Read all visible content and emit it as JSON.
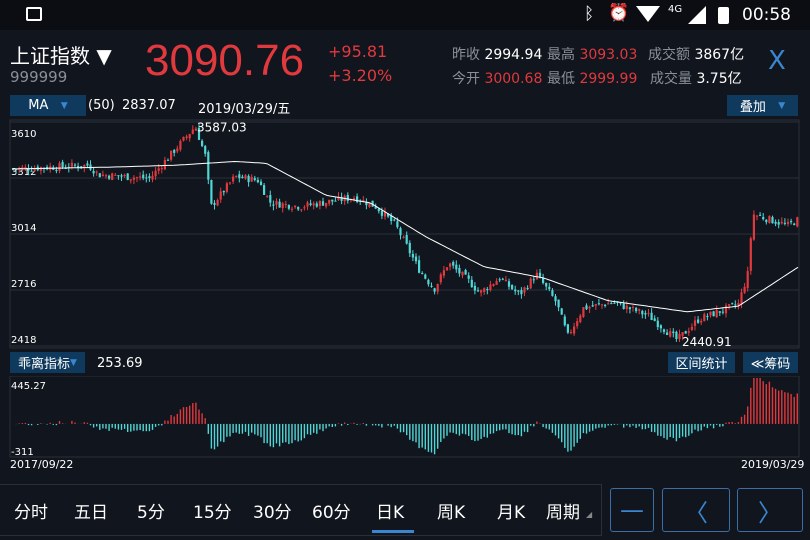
{
  "status_bar": {
    "network": "4G",
    "time": "00:58"
  },
  "header": {
    "name": "上证指数",
    "code": "999999",
    "price": "3090.76",
    "change": "+95.81",
    "change_pct": "+3.20%",
    "stats": [
      {
        "label": "昨收",
        "value": "2994.94",
        "color": "#ffffff"
      },
      {
        "label": "最高",
        "value": "3093.03",
        "color": "#e0393e"
      },
      {
        "label": "成交额",
        "value": "3867亿",
        "color": "#ffffff"
      },
      {
        "label": "今开",
        "value": "3000.68",
        "color": "#e0393e"
      },
      {
        "label": "最低",
        "value": "2999.99",
        "color": "#e0393e"
      },
      {
        "label": "成交量",
        "value": "3.75亿",
        "color": "#ffffff"
      }
    ],
    "close_label": "X"
  },
  "ma_bar": {
    "indicator": "MA",
    "period": "(50)",
    "value": "2837.07",
    "date": "2019/03/29/五",
    "overlay": "叠加"
  },
  "sub_bar": {
    "indicator": "乖离指标",
    "value": "253.69",
    "range_stats": "区间统计",
    "chips": "≪筹码"
  },
  "tabs": [
    "分时",
    "五日",
    "5分",
    "15分",
    "30分",
    "60分",
    "日K",
    "周K",
    "月K",
    "周期"
  ],
  "active_tab": "日K",
  "colors": {
    "up": "#e0393e",
    "down": "#4fd6d6",
    "ma": "#ffffff",
    "accent": "#3a86d0"
  },
  "chart_data": {
    "type": "candlestick",
    "x_start": "2017/09/22",
    "x_end": "2019/03/29",
    "y_ticks": [
      "3610",
      "3312",
      "3014",
      "2716",
      "2418"
    ],
    "ylim": [
      2418,
      3610
    ],
    "high_label": "3587.03",
    "low_label": "2440.91",
    "close_path": [
      [
        "2017-09-22",
        3360
      ],
      [
        "2017-11-15",
        3380
      ],
      [
        "2017-11-22",
        3330
      ],
      [
        "2017-12-28",
        3310
      ],
      [
        "2018-01-29",
        3587
      ],
      [
        "2018-02-05",
        3430
      ],
      [
        "2018-02-09",
        3160
      ],
      [
        "2018-02-26",
        3320
      ],
      [
        "2018-03-14",
        3300
      ],
      [
        "2018-03-23",
        3180
      ],
      [
        "2018-04-13",
        3160
      ],
      [
        "2018-05-21",
        3210
      ],
      [
        "2018-06-05",
        3160
      ],
      [
        "2018-06-19",
        3060
      ],
      [
        "2018-07-05",
        2830
      ],
      [
        "2018-07-16",
        2720
      ],
      [
        "2018-07-26",
        2860
      ],
      [
        "2018-08-10",
        2760
      ],
      [
        "2018-08-17",
        2700
      ],
      [
        "2018-08-31",
        2780
      ],
      [
        "2018-09-14",
        2690
      ],
      [
        "2018-09-26",
        2800
      ],
      [
        "2018-10-10",
        2650
      ],
      [
        "2018-10-18",
        2470
      ],
      [
        "2018-10-29",
        2620
      ],
      [
        "2018-11-19",
        2650
      ],
      [
        "2018-12-14",
        2580
      ],
      [
        "2019-01-03",
        2450
      ],
      [
        "2019-01-18",
        2560
      ],
      [
        "2019-02-15",
        2640
      ],
      [
        "2019-02-22",
        2810
      ],
      [
        "2019-02-25",
        3120
      ],
      [
        "2019-03-22",
        3060
      ],
      [
        "2019-03-29",
        3090
      ]
    ],
    "ma50_path": [
      [
        "2017-09-22",
        3360
      ],
      [
        "2017-12-01",
        3370
      ],
      [
        "2018-01-15",
        3380
      ],
      [
        "2018-02-26",
        3400
      ],
      [
        "2018-03-20",
        3390
      ],
      [
        "2018-05-01",
        3220
      ],
      [
        "2018-06-01",
        3180
      ],
      [
        "2018-07-10",
        3000
      ],
      [
        "2018-08-20",
        2840
      ],
      [
        "2018-10-01",
        2780
      ],
      [
        "2018-11-15",
        2660
      ],
      [
        "2019-01-10",
        2600
      ],
      [
        "2019-02-15",
        2630
      ],
      [
        "2019-03-29",
        2837
      ]
    ],
    "indicator": {
      "name": "乖离指标",
      "ylim": [
        -311,
        445.27
      ],
      "y_ticks": [
        "445.27",
        "-311"
      ]
    }
  }
}
